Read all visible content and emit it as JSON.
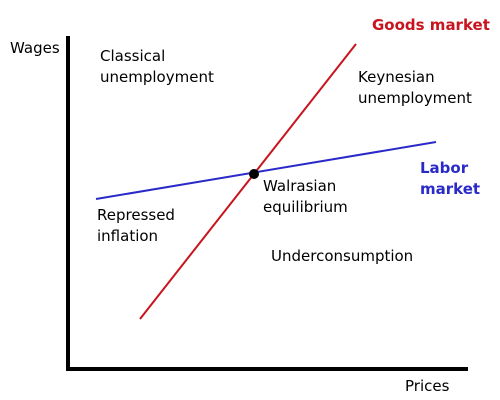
{
  "axes": {
    "y_label": "Wages",
    "x_label": "Prices"
  },
  "lines": {
    "goods": {
      "label": "Goods market",
      "color": "#c8141e"
    },
    "labor": {
      "label": "Labor\nmarket",
      "color": "#2a2ac8"
    }
  },
  "regions": {
    "classical": "Classical\nunemployment",
    "keynesian": "Keynesian\nunemployment",
    "repressed": "Repressed\ninflation",
    "underconsumption": "Underconsumption"
  },
  "equilibrium": {
    "label": "Walrasian\nequilibrium",
    "color": "#000000"
  },
  "colors": {
    "axis": "#000000",
    "background": "#ffffff"
  }
}
